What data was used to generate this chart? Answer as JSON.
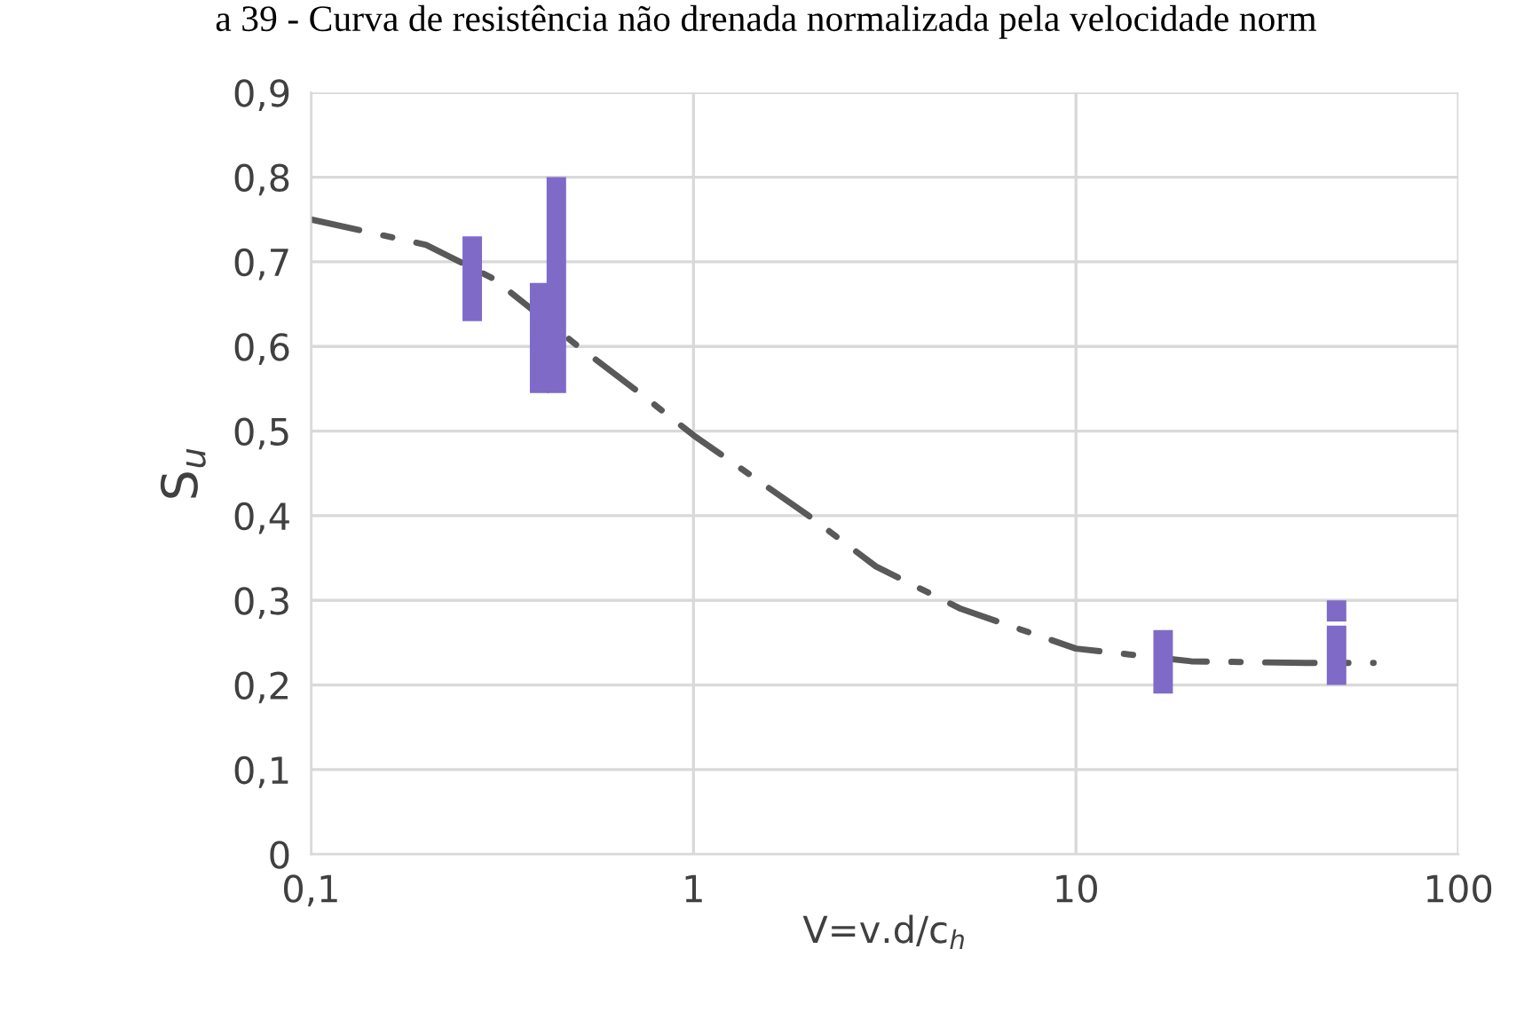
{
  "chart_data": {
    "type": "bar",
    "title": "a 39 - Curva de resistência não drenada normalizada pela velocidade norm",
    "xlabel": "V=v.d/c$_{h}$",
    "ylabel": "S$_{u}$",
    "log": "x",
    "grid": true,
    "xlim": [
      0.1,
      100
    ],
    "xticks": [
      {
        "value": 0.1,
        "label": "0,1"
      },
      1,
      10,
      100
    ],
    "ylim": [
      0,
      0.9
    ],
    "yticks": [
      0,
      {
        "value": 0.1,
        "label": "0,1"
      },
      {
        "value": 0.2,
        "label": "0,2"
      },
      {
        "value": 0.3,
        "label": "0,3"
      },
      {
        "value": 0.4,
        "label": "0,4"
      },
      {
        "value": 0.5,
        "label": "0,5"
      },
      {
        "value": 0.6,
        "label": "0,6"
      },
      {
        "value": 0.7,
        "label": "0,7"
      },
      {
        "value": 0.8,
        "label": "0,8"
      },
      {
        "value": 0.9,
        "label": "0,9"
      }
    ],
    "series": [
      {
        "color": "#7f6ac8",
        "x": [
          0.264,
          0.396,
          0.438,
          16.9,
          48
        ],
        "base": [
          0.63,
          0.545,
          0.545,
          0.19,
          0.2
        ],
        "values": [
          0.1,
          0.13,
          0.255,
          0.075,
          0.07
        ]
      },
      {
        "color": "#7f6ac8",
        "x": [
          48
        ],
        "base": [
          0.275
        ],
        "values": [
          0.025
        ]
      },
      {
        "type": "line",
        "color": "#595959",
        "line_style": "dashdot",
        "x": [
          0.1,
          0.2,
          0.3,
          0.5,
          0.7,
          1,
          2,
          3,
          5,
          10,
          20,
          40,
          60
        ],
        "values": [
          0.75,
          0.72,
          0.68,
          0.6,
          0.55,
          0.495,
          0.4,
          0.34,
          0.29,
          0.243,
          0.228,
          0.226,
          0.226
        ]
      }
    ]
  }
}
